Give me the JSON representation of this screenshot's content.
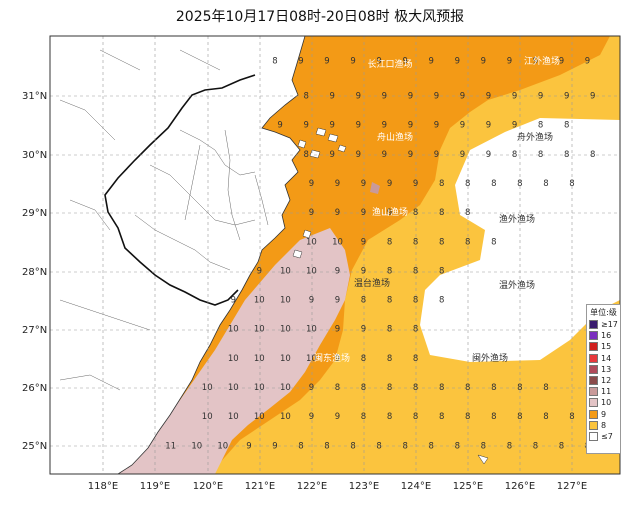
{
  "title": "2025年10月17日08时-20日08时 极大风预报",
  "latitude_labels": [
    "31°N",
    "30°N",
    "29°N",
    "28°N",
    "27°N",
    "26°N",
    "25°N"
  ],
  "longitude_labels": [
    "118°E",
    "119°E",
    "120°E",
    "121°E",
    "122°E",
    "123°E",
    "124°E",
    "125°E",
    "126°E",
    "127°E"
  ],
  "fishing_zones": [
    {
      "name": "长江口渔场"
    },
    {
      "name": "江外渔场"
    },
    {
      "name": "舟山渔场"
    },
    {
      "name": "舟外渔场"
    },
    {
      "name": "渔山渔场"
    },
    {
      "name": "渔外渔场"
    },
    {
      "name": "温台渔场"
    },
    {
      "name": "温外渔场"
    },
    {
      "name": "闽东渔场"
    },
    {
      "name": "闽外渔场"
    }
  ],
  "legend": {
    "title": "单位:级",
    "items": [
      {
        "label": "≥17",
        "color": "#3a1c6e"
      },
      {
        "label": "16",
        "color": "#7b2fbf"
      },
      {
        "label": "15",
        "color": "#d0201f"
      },
      {
        "label": "14",
        "color": "#e8383c"
      },
      {
        "label": "13",
        "color": "#b04a5a"
      },
      {
        "label": "12",
        "color": "#8a4a4a"
      },
      {
        "label": "11",
        "color": "#c99a9a"
      },
      {
        "label": "10",
        "color": "#e3c4c6"
      },
      {
        "label": "9",
        "color": "#f39a16"
      },
      {
        "label": "8",
        "color": "#fbc43e"
      },
      {
        "label": "≤7",
        "color": "#ffffff"
      }
    ]
  },
  "wind_levels": {
    "rows": [
      {
        "lat": "31.6",
        "cells": [
          "8",
          "9",
          "9",
          "9",
          "9",
          "9",
          "9",
          "9",
          "9",
          "9",
          "9",
          "9",
          "9"
        ]
      },
      {
        "lat": "31.0",
        "cells": [
          "8",
          "9",
          "9",
          "9",
          "9",
          "9",
          "9",
          "9",
          "9",
          "9",
          "9",
          "9",
          "8"
        ]
      },
      {
        "lat": "30.5",
        "cells": [
          "9",
          "9",
          "9",
          "9",
          "9",
          "9",
          "9",
          "9",
          "9",
          "9",
          "8",
          "8"
        ]
      },
      {
        "lat": "30.0",
        "cells": [
          "8",
          "9",
          "9",
          "9",
          "9",
          "9",
          "9",
          "9",
          "8",
          "8",
          "8",
          "8"
        ]
      },
      {
        "lat": "29.5",
        "cells": [
          "9",
          "9",
          "9",
          "9",
          "9",
          "8",
          "8",
          "8",
          "8",
          "8",
          "8"
        ]
      },
      {
        "lat": "29.0",
        "cells": [
          "9",
          "9",
          "9",
          "9",
          "8",
          "8",
          "8"
        ]
      },
      {
        "lat": "28.5",
        "cells": [
          "10",
          "10",
          "9",
          "8",
          "8",
          "8",
          "8",
          "8"
        ]
      },
      {
        "lat": "28.0",
        "cells": [
          "9",
          "10",
          "10",
          "9",
          "9",
          "8",
          "8",
          "8"
        ]
      },
      {
        "lat": "27.5",
        "cells": [
          "9",
          "10",
          "10",
          "9",
          "9",
          "8",
          "8",
          "8",
          "8"
        ]
      },
      {
        "lat": "27.0",
        "cells": [
          "10",
          "10",
          "10",
          "10",
          "9",
          "9",
          "8",
          "8"
        ]
      },
      {
        "lat": "26.5",
        "cells": [
          "10",
          "10",
          "10",
          "10",
          "9",
          "8",
          "8",
          "8"
        ]
      },
      {
        "lat": "26.0",
        "cells": [
          "10",
          "10",
          "10",
          "10",
          "9",
          "8",
          "8",
          "8",
          "8",
          "8",
          "8",
          "8",
          "8",
          "8"
        ]
      },
      {
        "lat": "25.5",
        "cells": [
          "10",
          "10",
          "10",
          "10",
          "9",
          "9",
          "8",
          "8",
          "8",
          "8",
          "8",
          "8",
          "8",
          "8",
          "8"
        ]
      },
      {
        "lat": "25.0",
        "cells": [
          "11",
          "10",
          "10",
          "9",
          "9",
          "8",
          "8",
          "8",
          "8",
          "8",
          "8",
          "8",
          "8",
          "8",
          "8",
          "8",
          "8"
        ]
      }
    ]
  }
}
